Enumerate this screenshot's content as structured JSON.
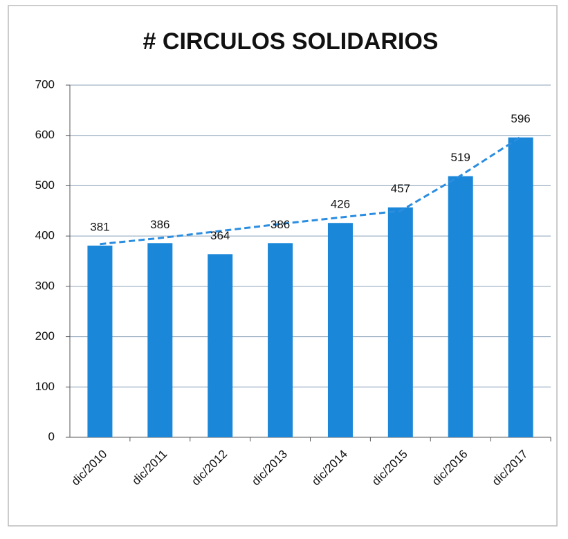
{
  "chart_data": {
    "type": "bar",
    "title": "# CIRCULOS SOLIDARIOS",
    "categories": [
      "dic/2010",
      "dic/2011",
      "dic/2012",
      "dic/2013",
      "dic/2014",
      "dic/2015",
      "dic/2016",
      "dic/2017"
    ],
    "values": [
      381,
      386,
      364,
      386,
      426,
      457,
      519,
      596
    ],
    "color": "#1b87d8",
    "trend": {
      "color": "#2a8de0",
      "dashed": true,
      "values": [
        384,
        396,
        410,
        424,
        437,
        450,
        520,
        597
      ]
    },
    "ylim": [
      0,
      700
    ],
    "yticks": [
      0,
      100,
      200,
      300,
      400,
      500,
      600,
      700
    ],
    "grid": true
  }
}
